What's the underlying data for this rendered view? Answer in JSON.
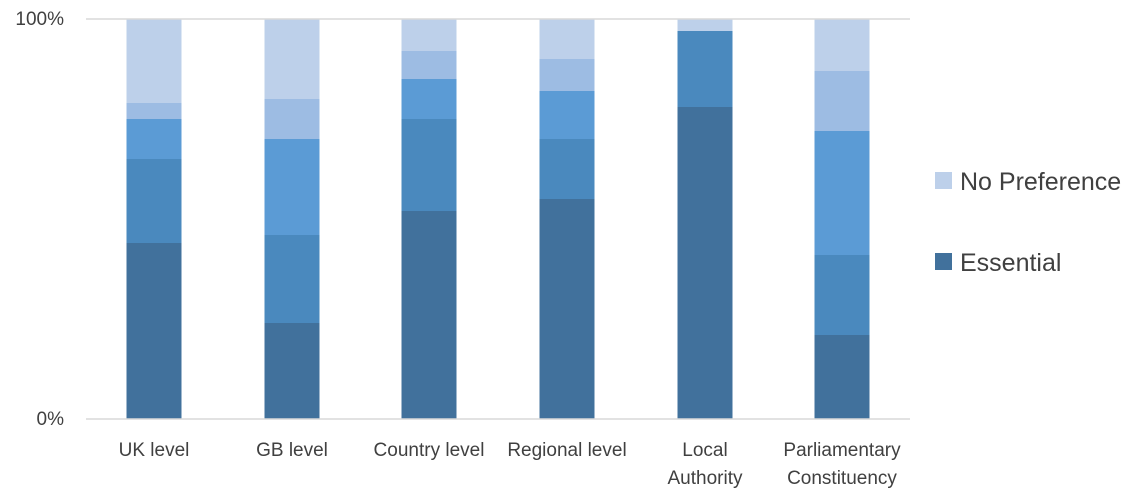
{
  "chart_data": {
    "type": "bar",
    "stacked": true,
    "normalized": true,
    "categories": [
      [
        "UK level"
      ],
      [
        "GB level"
      ],
      [
        "Country level"
      ],
      [
        "Regional level"
      ],
      [
        "Local",
        "Authority"
      ],
      [
        "Parliamentary",
        "Constituency"
      ]
    ],
    "y_ticks": [
      "0%",
      "100%"
    ],
    "ylim": [
      0,
      100
    ],
    "grid": false,
    "legend_position": "right",
    "series": [
      {
        "name": "Essential",
        "color": "#41719C",
        "values": [
          44,
          24,
          52,
          55,
          78,
          21
        ]
      },
      {
        "color": "#4A89BE",
        "values": [
          21,
          22,
          23,
          15,
          19,
          20
        ]
      },
      {
        "color": "#5B9BD5",
        "values": [
          10,
          24,
          10,
          12,
          0,
          31
        ]
      },
      {
        "color": "#9DBCE3",
        "values": [
          4,
          10,
          7,
          8,
          0,
          15
        ]
      },
      {
        "name": "No Preference",
        "color": "#BDD0EA",
        "values": [
          21,
          20,
          8,
          10,
          3,
          13
        ]
      }
    ]
  }
}
